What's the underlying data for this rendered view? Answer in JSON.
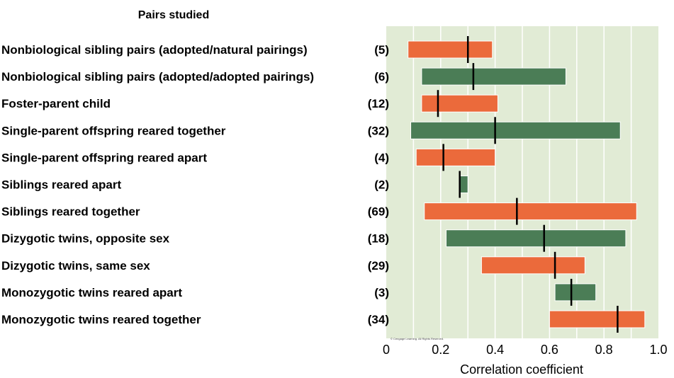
{
  "chart_data": {
    "type": "bar",
    "subtype": "range",
    "header": "Pairs studied",
    "xlabel": "Correlation coefficient",
    "xlim": [
      0,
      1.0
    ],
    "xticks": [
      "0",
      "0.2",
      "0.4",
      "0.6",
      "0.8",
      "1.0"
    ],
    "grid": true,
    "copyright": "© Cengage Learning. All Rights Reserved.",
    "colors": {
      "orange": "#EB6A3B",
      "green": "#4B7D56",
      "plot_bg": "#E1EBD5",
      "grid": "#FFFFFF",
      "median": "#000000"
    },
    "rows": [
      {
        "label": "Nonbiological sibling pairs (adopted/natural pairings)",
        "count": "(5)",
        "low": 0.08,
        "high": 0.39,
        "median": 0.3,
        "color": "orange"
      },
      {
        "label": "Nonbiological sibling pairs (adopted/adopted pairings)",
        "count": "(6)",
        "low": 0.13,
        "high": 0.66,
        "median": 0.32,
        "color": "green"
      },
      {
        "label": "Foster-parent child",
        "count": "(12)",
        "low": 0.13,
        "high": 0.41,
        "median": 0.19,
        "color": "orange"
      },
      {
        "label": "Single-parent offspring reared together",
        "count": "(32)",
        "low": 0.09,
        "high": 0.86,
        "median": 0.4,
        "color": "green"
      },
      {
        "label": "Single-parent offspring reared apart",
        "count": "(4)",
        "low": 0.11,
        "high": 0.4,
        "median": 0.21,
        "color": "orange"
      },
      {
        "label": "Siblings reared apart",
        "count": "(2)",
        "low": 0.27,
        "high": 0.3,
        "median": 0.27,
        "color": "green"
      },
      {
        "label": "Siblings reared together",
        "count": "(69)",
        "low": 0.14,
        "high": 0.92,
        "median": 0.48,
        "color": "orange"
      },
      {
        "label": "Dizygotic twins, opposite sex",
        "count": "(18)",
        "low": 0.22,
        "high": 0.88,
        "median": 0.58,
        "color": "green"
      },
      {
        "label": "Dizygotic twins, same sex",
        "count": "(29)",
        "low": 0.35,
        "high": 0.73,
        "median": 0.62,
        "color": "orange"
      },
      {
        "label": "Monozygotic twins reared apart",
        "count": "(3)",
        "low": 0.62,
        "high": 0.77,
        "median": 0.68,
        "color": "green"
      },
      {
        "label": "Monozygotic twins reared together",
        "count": "(34)",
        "low": 0.6,
        "high": 0.95,
        "median": 0.85,
        "color": "orange"
      }
    ]
  }
}
